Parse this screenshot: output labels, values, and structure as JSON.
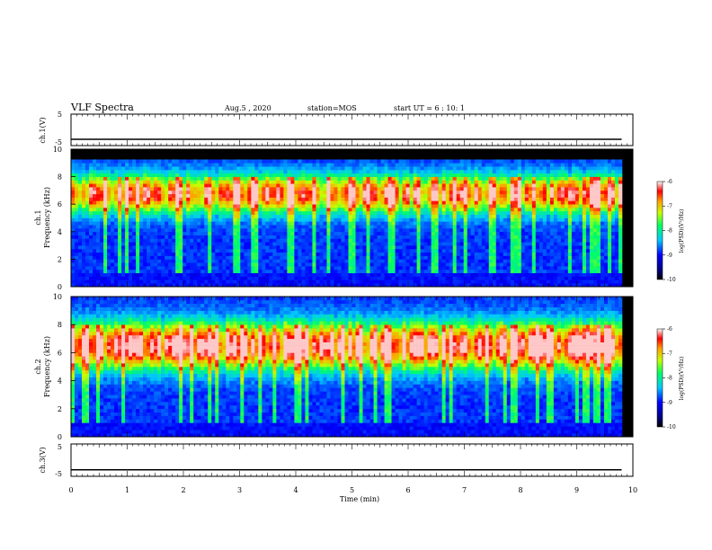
{
  "header": {
    "title": "VLF Spectra",
    "date": "Aug.5  , 2020",
    "station": "station=MOS",
    "start_ut": "start UT =  6 : 10: 1"
  },
  "chart_data": [
    {
      "type": "line",
      "panel": "ch1-voltage",
      "ylabel": "ch.1(V)",
      "yticks": [
        "5",
        "-5"
      ],
      "ylim": [
        -5,
        5
      ],
      "x": [
        0,
        9.8
      ],
      "y": [
        -3,
        -3
      ]
    },
    {
      "type": "heatmap",
      "panel": "ch1-spectrogram",
      "ylabel": "ch.1\nFrequency (kHz)",
      "yticks": [
        "0",
        "2",
        "4",
        "6",
        "8",
        "10"
      ],
      "ylim": [
        0,
        10
      ],
      "band_kHz": [
        5.5,
        8
      ],
      "colorbar": {
        "label": "log(PSD)(V²/Hz)",
        "ticks": [
          "-6",
          "-7",
          "-8",
          "-9",
          "-10"
        ],
        "range": [
          -10,
          -6
        ]
      }
    },
    {
      "type": "heatmap",
      "panel": "ch2-spectrogram",
      "ylabel": "ch.2\nFrequency (kHz)",
      "yticks": [
        "0",
        "2",
        "4",
        "6",
        "8",
        "10"
      ],
      "ylim": [
        0,
        10
      ],
      "band_kHz": [
        5,
        8
      ],
      "colorbar": {
        "label": "log(PSD)(V²/Hz)",
        "ticks": [
          "-6",
          "-7",
          "-8",
          "-9",
          "-10"
        ],
        "range": [
          -10,
          -6
        ]
      }
    },
    {
      "type": "line",
      "panel": "ch3-voltage",
      "ylabel": "ch.3(V)",
      "yticks": [
        "5",
        "-5"
      ],
      "ylim": [
        -5,
        5
      ],
      "x": [
        0,
        9.8
      ],
      "y": [
        -3,
        -3
      ],
      "xlabel": "Time (min)",
      "xticks": [
        "0",
        "1",
        "2",
        "3",
        "4",
        "5",
        "6",
        "7",
        "8",
        "9",
        "10"
      ],
      "xlim": [
        0,
        10
      ]
    }
  ]
}
